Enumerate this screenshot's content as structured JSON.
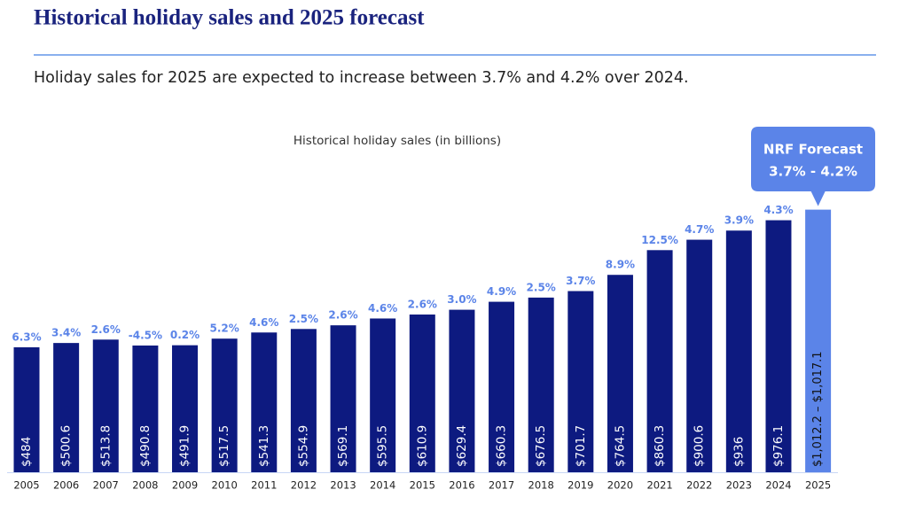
{
  "chart_data": {
    "type": "bar",
    "title": "Historical holiday sales and 2025 forecast",
    "subtitle": "Holiday sales for 2025 are expected to increase between 3.7% and 4.2% over 2024.",
    "chart_label": "Historical holiday sales (in billions)",
    "color": "#0d1a80",
    "categories": [
      "2005",
      "2006",
      "2007",
      "2008",
      "2009",
      "2010",
      "2011",
      "2012",
      "2013",
      "2014",
      "2015",
      "2016",
      "2017",
      "2018",
      "2019",
      "2020",
      "2021",
      "2022",
      "2023",
      "2024"
    ],
    "values": [
      484,
      500.6,
      513.8,
      490.8,
      491.9,
      517.5,
      541.3,
      554.9,
      569.1,
      595.5,
      610.9,
      629.4,
      660.3,
      676.5,
      701.7,
      764.5,
      860.3,
      900.6,
      936,
      976.1
    ],
    "value_labels": [
      "$484",
      "$500.6",
      "$513.8",
      "$490.8",
      "$491.9",
      "$517.5",
      "$541.3",
      "$554.9",
      "$569.1",
      "$595.5",
      "$610.9",
      "$629.4",
      "$660.3",
      "$676.5",
      "$701.7",
      "$764.5",
      "$860.3",
      "$900.6",
      "$936",
      "$976.1"
    ],
    "growth": {
      "color": "#5b84e8",
      "values": [
        6.3,
        3.4,
        2.6,
        -4.5,
        0.2,
        5.2,
        4.6,
        2.5,
        2.6,
        4.6,
        2.6,
        3.0,
        4.9,
        2.5,
        3.7,
        8.9,
        12.5,
        4.7,
        3.9,
        4.3
      ],
      "value_labels": [
        "6.3%",
        "3.4%",
        "2.6%",
        "-4.5%",
        "0.2%",
        "5.2%",
        "4.6%",
        "2.5%",
        "2.6%",
        "4.6%",
        "2.6%",
        "3.0%",
        "4.9%",
        "2.5%",
        "3.7%",
        "8.9%",
        "12.5%",
        "4.7%",
        "3.9%",
        "4.3%"
      ]
    },
    "forecast": {
      "category": "2025",
      "color": "#5b84e8",
      "low": 1012.2,
      "high": 1017.1,
      "label": "$1,012.2 – $1,017.1",
      "callout_title": "NRF Forecast",
      "callout_range": "3.7% - 4.2%"
    }
  }
}
